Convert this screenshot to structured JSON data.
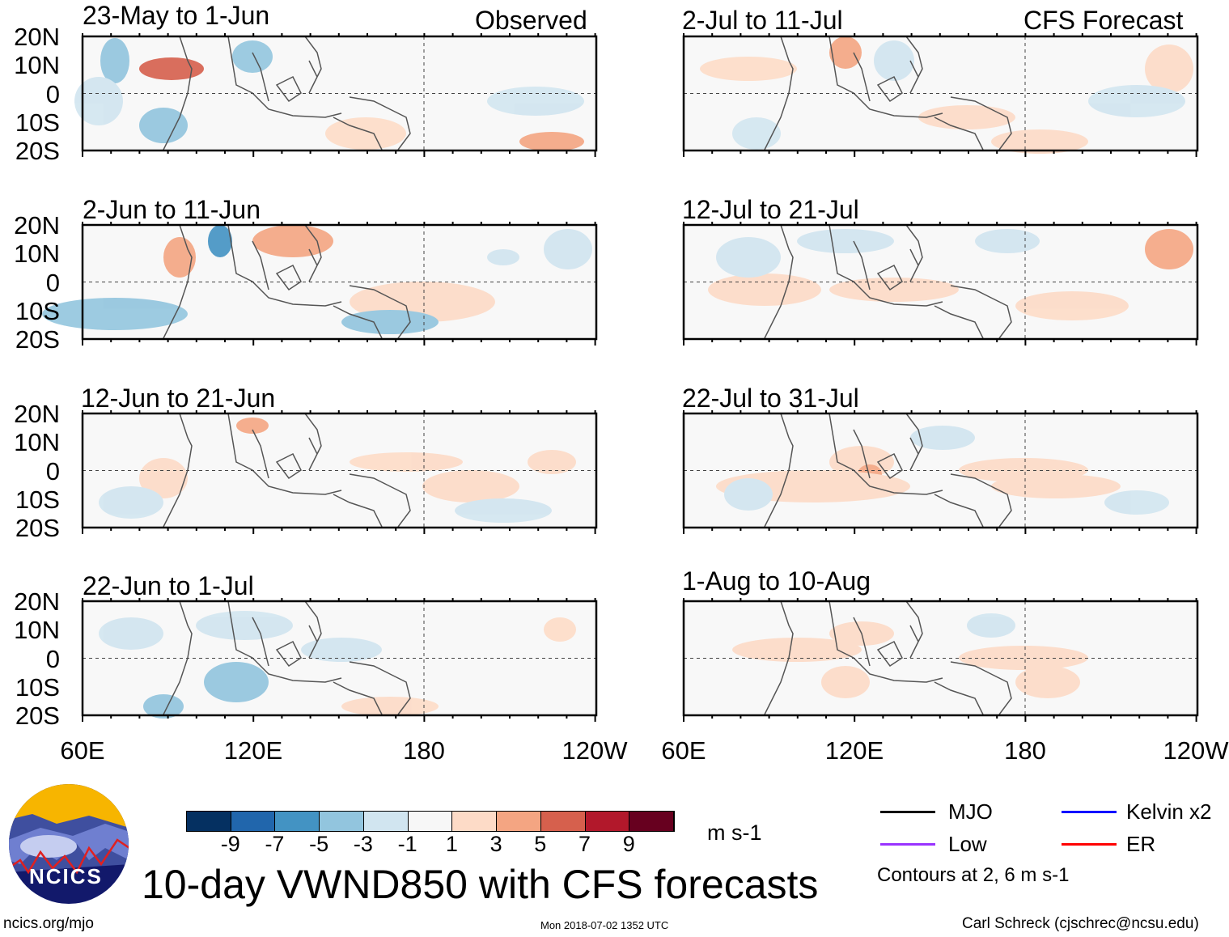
{
  "title": "10-day VWND850 with CFS forecasts",
  "logo_text": "NCICS",
  "footer": {
    "url": "ncics.org/mjo",
    "timestamp": "Mon 2018-07-02 1352 UTC",
    "author": "Carl Schreck (cjschrec@ncsu.edu)"
  },
  "column_labels": {
    "left": "Observed",
    "right": "CFS Forecast"
  },
  "panels": {
    "left": [
      "23-May to 1-Jun",
      "2-Jun to 11-Jun",
      "12-Jun to 21-Jun",
      "22-Jun to 1-Jul"
    ],
    "right": [
      "2-Jul to 11-Jul",
      "12-Jul to 21-Jul",
      "22-Jul to 31-Jul",
      "1-Aug to 10-Aug"
    ]
  },
  "lat_labels": [
    "20N",
    "10N",
    "0",
    "10S",
    "20S"
  ],
  "lon_labels": [
    "60E",
    "120E",
    "180",
    "120W"
  ],
  "colorbar": {
    "unit": "m s-1",
    "labels": [
      "-9",
      "-7",
      "-5",
      "-3",
      "-1",
      "1",
      "3",
      "5",
      "7",
      "9"
    ],
    "colors": [
      "#053061",
      "#2166ac",
      "#4393c3",
      "#92c5de",
      "#d1e5f0",
      "#f7f7f7",
      "#fddbc7",
      "#f4a582",
      "#d6604d",
      "#b2182b",
      "#67001f"
    ]
  },
  "legend": {
    "items": [
      {
        "label": "MJO",
        "color": "#000000"
      },
      {
        "label": "Kelvin x2",
        "color": "#0000ff"
      },
      {
        "label": "Low",
        "color": "#9933ff"
      },
      {
        "label": "ER",
        "color": "#ff0000"
      }
    ],
    "note": "Contours at 2, 6 m s-1"
  }
}
